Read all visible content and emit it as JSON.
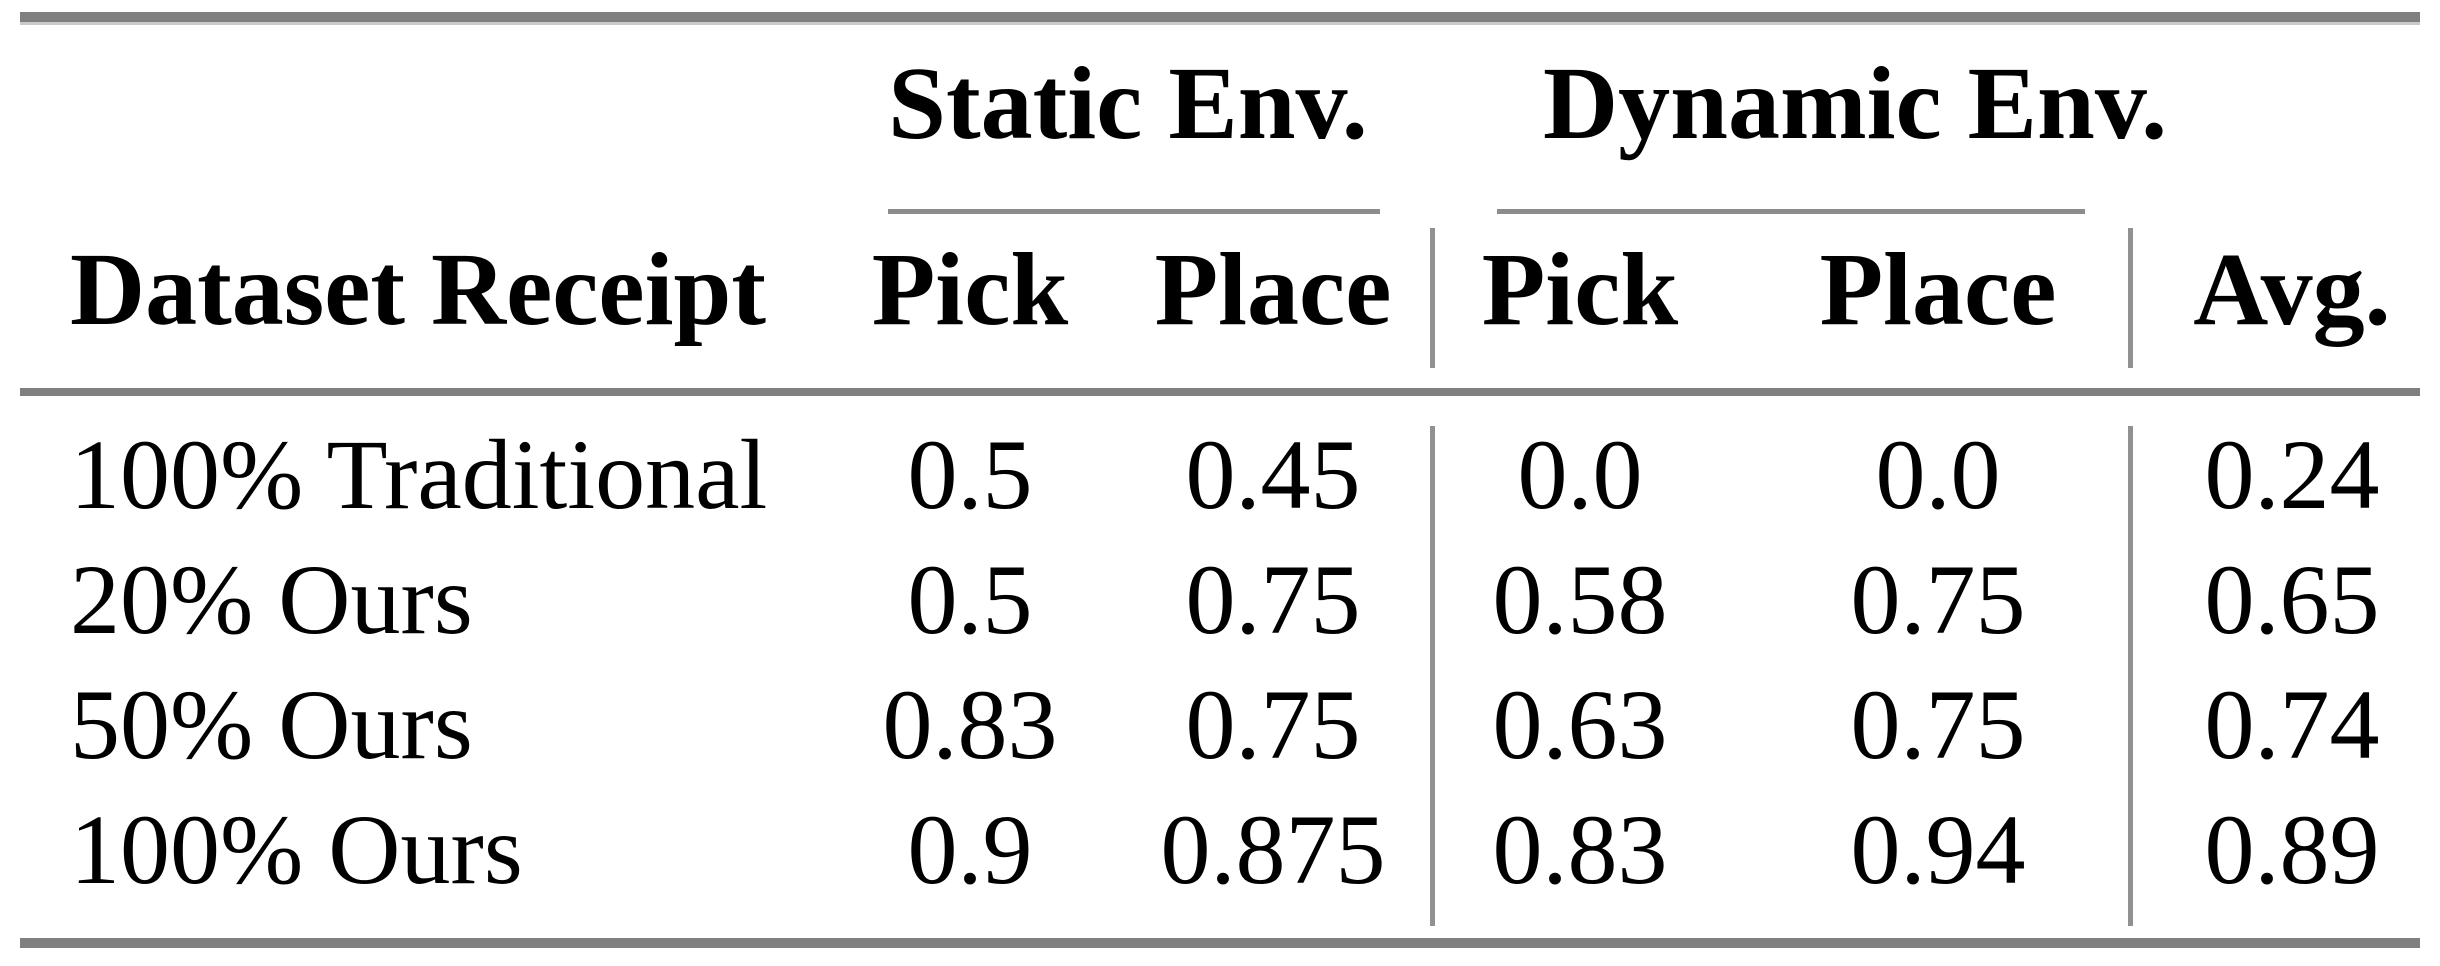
{
  "table": {
    "group_headers": {
      "static": "Static Env.",
      "dynamic": "Dynamic Env."
    },
    "columns": {
      "dataset": "Dataset Receipt",
      "static_pick": "Pick",
      "static_place": "Place",
      "dynamic_pick": "Pick",
      "dynamic_place": "Place",
      "avg": "Avg."
    },
    "rows": [
      {
        "label": "100% Traditional",
        "static_pick": "0.5",
        "static_place": "0.45",
        "dynamic_pick": "0.0",
        "dynamic_place": "0.0",
        "avg": "0.24"
      },
      {
        "label": "20% Ours",
        "static_pick": "0.5",
        "static_place": "0.75",
        "dynamic_pick": "0.58",
        "dynamic_place": "0.75",
        "avg": "0.65"
      },
      {
        "label": "50% Ours",
        "static_pick": "0.83",
        "static_place": "0.75",
        "dynamic_pick": "0.63",
        "dynamic_place": "0.75",
        "avg": "0.74"
      },
      {
        "label": "100% Ours",
        "static_pick": "0.9",
        "static_place": "0.875",
        "dynamic_pick": "0.83",
        "dynamic_place": "0.94",
        "avg": "0.89"
      }
    ],
    "colors": {
      "thick_rule": "#7f7f7f",
      "thin_rule": "#8c8c8c",
      "vertical_separator": "#919191",
      "text": "#000000",
      "background": "#ffffff"
    }
  },
  "chart_data": {
    "type": "table",
    "title": "",
    "column_groups": [
      "Static Env.",
      "Dynamic Env."
    ],
    "columns": [
      "Dataset Receipt",
      "Static Pick",
      "Static Place",
      "Dynamic Pick",
      "Dynamic Place",
      "Avg."
    ],
    "rows": [
      [
        "100% Traditional",
        0.5,
        0.45,
        0.0,
        0.0,
        0.24
      ],
      [
        "20% Ours",
        0.5,
        0.75,
        0.58,
        0.75,
        0.65
      ],
      [
        "50% Ours",
        0.83,
        0.75,
        0.63,
        0.75,
        0.74
      ],
      [
        "100% Ours",
        0.9,
        0.875,
        0.83,
        0.94,
        0.89
      ]
    ]
  }
}
